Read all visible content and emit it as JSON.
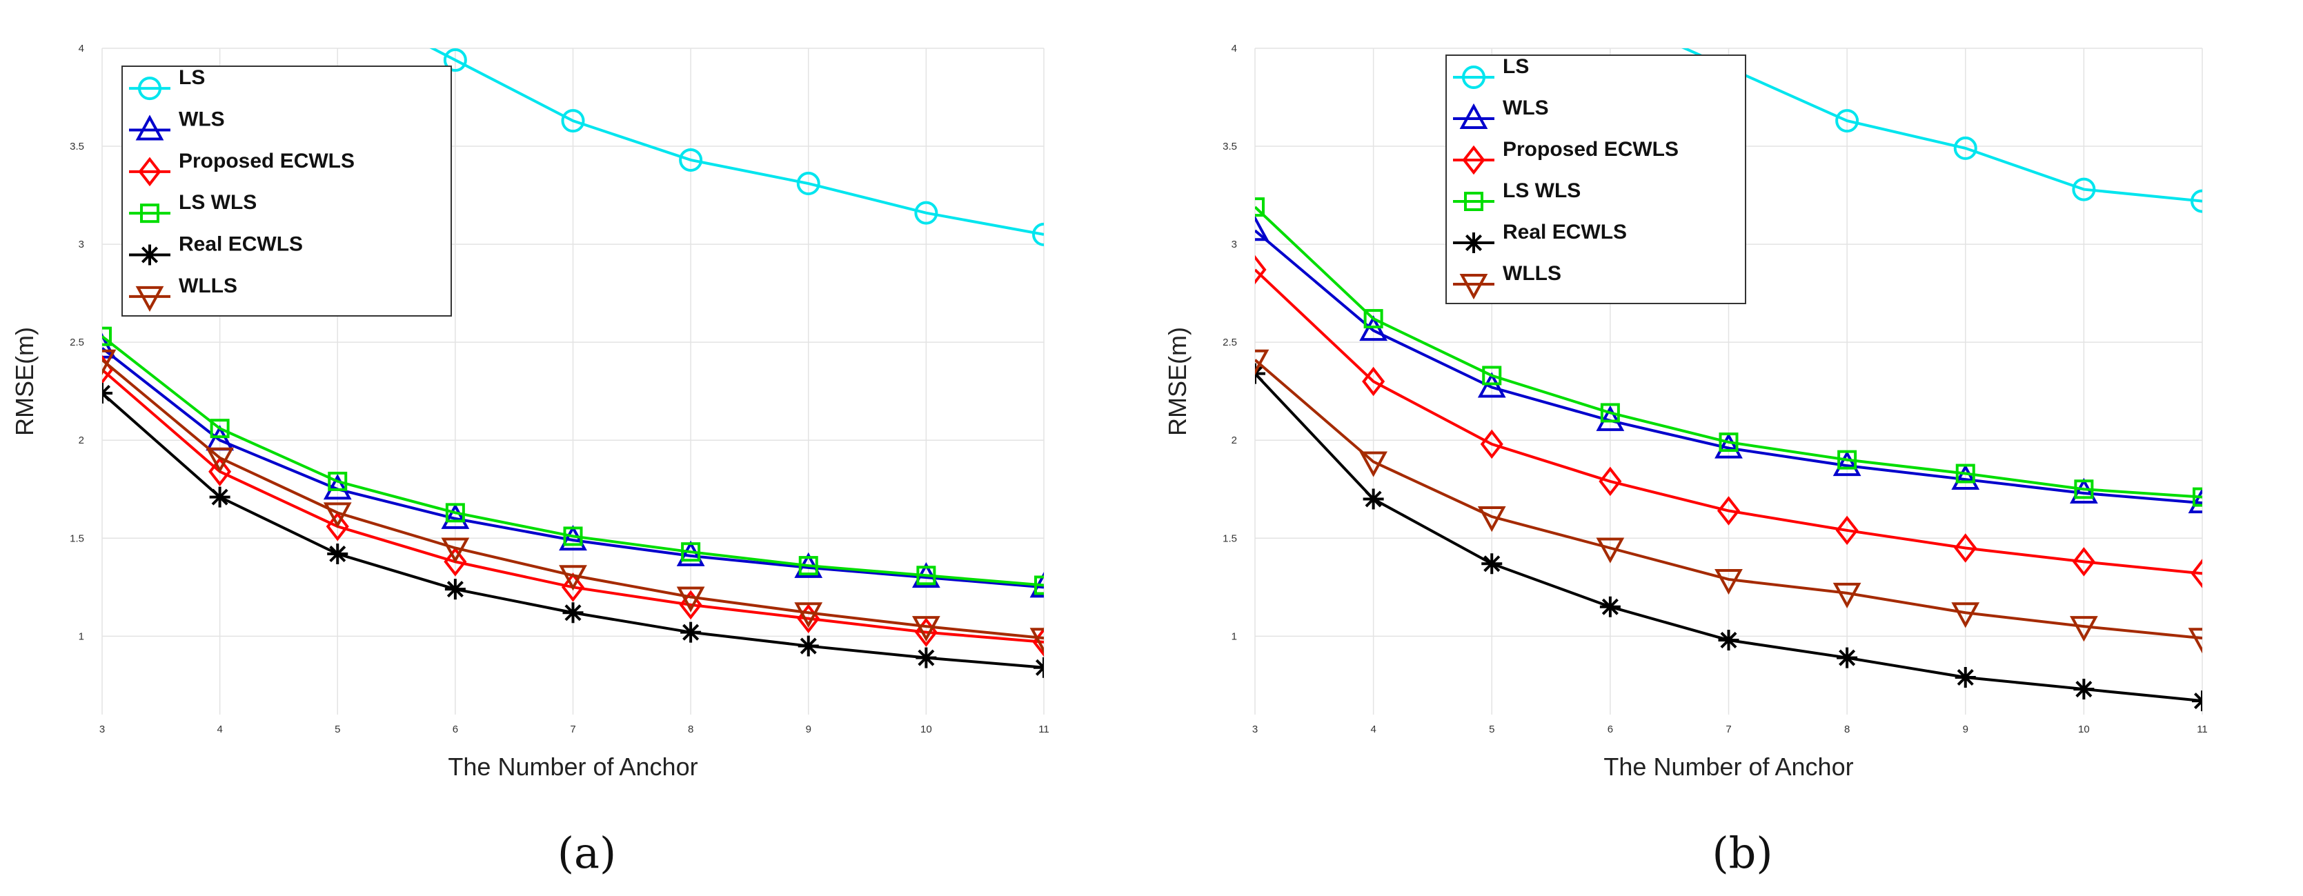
{
  "chart_data": [
    {
      "type": "line",
      "panel_label": "(a)",
      "xlabel": "The Number of Anchor",
      "ylabel": "RMSE(m)",
      "xlim": [
        3,
        11
      ],
      "ylim": [
        0.6,
        4
      ],
      "x_ticks": [
        "3",
        "4",
        "5",
        "6",
        "7",
        "8",
        "9",
        "10",
        "11"
      ],
      "y_ticks": [
        "1",
        "1.5",
        "2",
        "2.5",
        "3",
        "3.5",
        "4"
      ],
      "grid": true,
      "legend_position": "top-left",
      "x": [
        3,
        4,
        5,
        6,
        7,
        8,
        9,
        10,
        11
      ],
      "series": [
        {
          "name": "LS",
          "color": "#00e5ee",
          "marker": "circle",
          "values": [
            null,
            null,
            null,
            3.94,
            3.63,
            3.43,
            3.31,
            3.16,
            3.05
          ]
        },
        {
          "name": "WLS",
          "color": "#0000cc",
          "marker": "triangle-up",
          "values": [
            2.47,
            2.0,
            1.75,
            1.6,
            1.49,
            1.41,
            1.35,
            1.3,
            1.25
          ]
        },
        {
          "name": "Proposed ECWLS",
          "color": "#ff0000",
          "marker": "diamond",
          "values": [
            2.36,
            1.84,
            1.56,
            1.38,
            1.25,
            1.16,
            1.09,
            1.02,
            0.97
          ]
        },
        {
          "name": "LS WLS",
          "color": "#00dd00",
          "marker": "square",
          "values": [
            2.53,
            2.06,
            1.79,
            1.63,
            1.51,
            1.43,
            1.36,
            1.31,
            1.26
          ]
        },
        {
          "name": "Real ECWLS",
          "color": "#000000",
          "marker": "asterisk",
          "values": [
            2.24,
            1.71,
            1.42,
            1.24,
            1.12,
            1.02,
            0.95,
            0.89,
            0.84
          ]
        },
        {
          "name": "WLLS",
          "color": "#a52a00",
          "marker": "triangle-down",
          "values": [
            2.41,
            1.91,
            1.63,
            1.45,
            1.31,
            1.2,
            1.12,
            1.05,
            0.99
          ]
        }
      ]
    },
    {
      "type": "line",
      "panel_label": "(b)",
      "xlabel": "The Number of Anchor",
      "ylabel": "RMSE(m)",
      "xlim": [
        3,
        11
      ],
      "ylim": [
        0.6,
        4
      ],
      "x_ticks": [
        "3",
        "4",
        "5",
        "6",
        "7",
        "8",
        "9",
        "10",
        "11"
      ],
      "y_ticks": [
        "1",
        "1.5",
        "2",
        "2.5",
        "3",
        "3.5",
        "4"
      ],
      "grid": true,
      "legend_position": "top-left",
      "x": [
        3,
        4,
        5,
        6,
        7,
        8,
        9,
        10,
        11
      ],
      "series": [
        {
          "name": "LS",
          "color": "#00e5ee",
          "marker": "circle",
          "values": [
            null,
            null,
            null,
            null,
            3.9,
            3.63,
            3.49,
            3.28,
            3.22
          ]
        },
        {
          "name": "WLS",
          "color": "#0000cc",
          "marker": "triangle-up",
          "values": [
            3.07,
            2.56,
            2.27,
            2.1,
            1.96,
            1.87,
            1.8,
            1.73,
            1.68
          ]
        },
        {
          "name": "Proposed ECWLS",
          "color": "#ff0000",
          "marker": "diamond",
          "values": [
            2.87,
            2.3,
            1.98,
            1.79,
            1.64,
            1.54,
            1.45,
            1.38,
            1.32
          ]
        },
        {
          "name": "LS WLS",
          "color": "#00dd00",
          "marker": "square",
          "values": [
            3.19,
            2.62,
            2.33,
            2.14,
            1.99,
            1.9,
            1.83,
            1.75,
            1.71
          ]
        },
        {
          "name": "Real ECWLS",
          "color": "#000000",
          "marker": "asterisk",
          "values": [
            2.34,
            1.7,
            1.37,
            1.15,
            0.98,
            0.89,
            0.79,
            0.73,
            0.67
          ]
        },
        {
          "name": "WLLS",
          "color": "#a52a00",
          "marker": "triangle-down",
          "values": [
            2.41,
            1.89,
            1.61,
            1.45,
            1.29,
            1.22,
            1.12,
            1.05,
            0.99
          ]
        }
      ]
    }
  ]
}
